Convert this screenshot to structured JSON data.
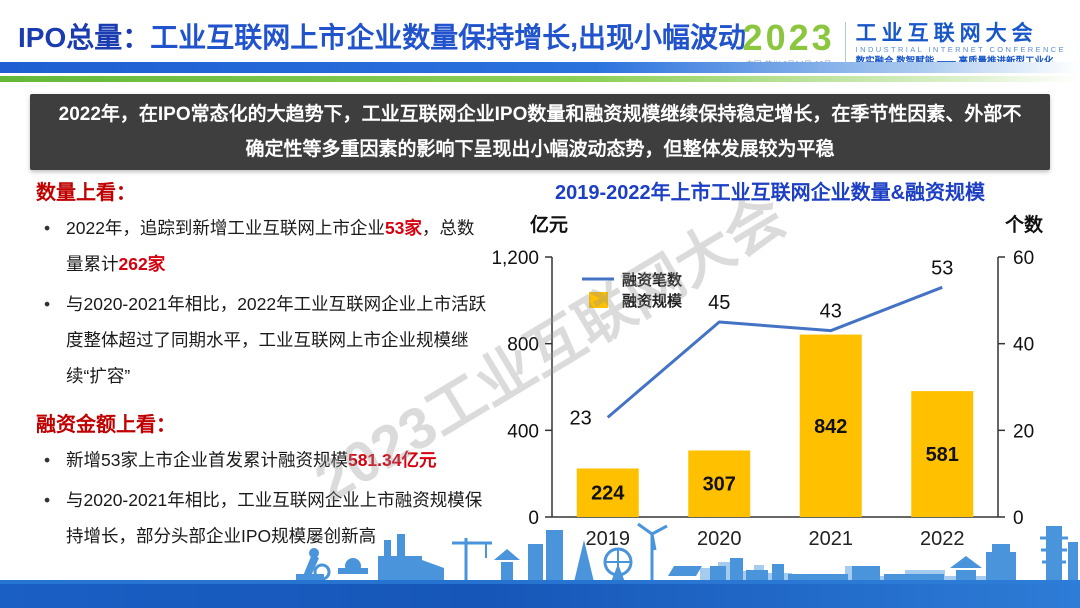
{
  "header": {
    "title_prefix": "IPO总量：",
    "title_main": "工业互联网上市企业数量保持增长,出现小幅波动"
  },
  "logo": {
    "year": "2023",
    "venue": "中国·苏州 6月14日-16日",
    "name_cn": "工业互联网大会",
    "name_en": "INDUSTRIAL INTERNET CONFERENCE",
    "slogan": "数实融合 数智赋能 —— 高质量推进新型工业化"
  },
  "banner": {
    "text": "2022年，在IPO常态化的大趋势下，工业互联网企业IPO数量和融资规模继续保持稳定增长，在季节性因素、外部不确定性等多重因素的影响下呈现出小幅波动态势，但整体发展较为平稳"
  },
  "left": {
    "sections": [
      {
        "heading": "数量上看：",
        "bullets": [
          [
            {
              "t": "2022年，追踪到新增工业互联网上市企业"
            },
            {
              "t": "53家",
              "em": true
            },
            {
              "t": "，总数量累计"
            },
            {
              "t": "262家",
              "em": true
            }
          ],
          [
            {
              "t": "与2020-2021年相比，2022年工业互联网企业上市活跃度整体超过了同期水平，工业互联网上市企业规模继续“扩容”"
            }
          ]
        ]
      },
      {
        "heading": "融资金额上看：",
        "bullets": [
          [
            {
              "t": "新增53家上市企业首发累计融资规模"
            },
            {
              "t": "581.34亿元",
              "em": true
            }
          ],
          [
            {
              "t": "与2020-2021年相比，工业互联网企业上市融资规模保持增长，部分头部企业IPO规模屡创新高"
            }
          ]
        ]
      }
    ]
  },
  "chart_data": {
    "type": "combo-bar-line",
    "title": "2019-2022年上市工业互联网企业数量&融资规模",
    "categories": [
      "2019",
      "2020",
      "2021",
      "2022"
    ],
    "series": [
      {
        "name": "融资笔数",
        "type": "line",
        "axis": "right",
        "values": [
          23,
          45,
          43,
          53
        ],
        "color": "#4472C4"
      },
      {
        "name": "融资规模",
        "type": "bar",
        "axis": "left",
        "values": [
          224,
          307,
          842,
          581
        ],
        "color": "#FFC000"
      }
    ],
    "left_axis": {
      "label": "亿元",
      "min": 0,
      "max": 1200,
      "ticks": [
        0,
        400,
        800,
        1200
      ]
    },
    "right_axis": {
      "label": "个数",
      "min": 0,
      "max": 60,
      "ticks": [
        0,
        20,
        40,
        60
      ]
    },
    "grid": false,
    "legend_position": "top-left"
  },
  "watermark": {
    "text": "2023工业互联网大会"
  },
  "colors": {
    "accent_blue": "#2153cc",
    "banner_bg": "#3e3e3e",
    "heading_red": "#c00000",
    "em_red": "#d7000f",
    "bar": "#FFC000",
    "line": "#4472C4",
    "logo_green": "#8cc63f",
    "footer_band": "#1a5fc4"
  }
}
